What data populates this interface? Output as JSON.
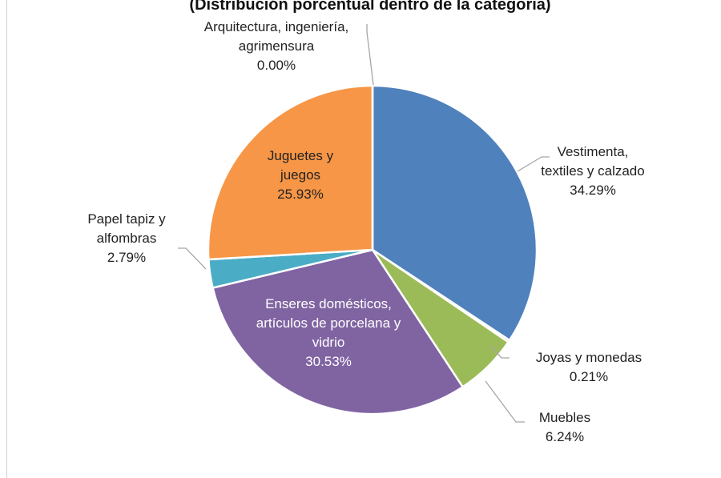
{
  "chart_data": {
    "type": "pie",
    "title": "(Distribución porcentual dentro de la categoría)",
    "categories": [
      "Vestimenta, textiles y calzado",
      "Joyas y monedas",
      "Muebles",
      "Enseres domésticos, artículos de porcelana y vidrio",
      "Papel tapiz y alfombras",
      "Juguetes y juegos",
      "Arquitectura, ingeniería, agrimensura"
    ],
    "values": [
      34.29,
      0.21,
      6.24,
      30.53,
      2.79,
      25.93,
      0.0
    ],
    "value_labels": [
      "34.29%",
      "0.21%",
      "6.24%",
      "30.53%",
      "2.79%",
      "25.93%",
      "0.00%"
    ],
    "colors": [
      "#4f81bd",
      "#c0504d",
      "#9bbb59",
      "#8064a2",
      "#4bacc6",
      "#f79646",
      "#7f9fcf"
    ]
  }
}
